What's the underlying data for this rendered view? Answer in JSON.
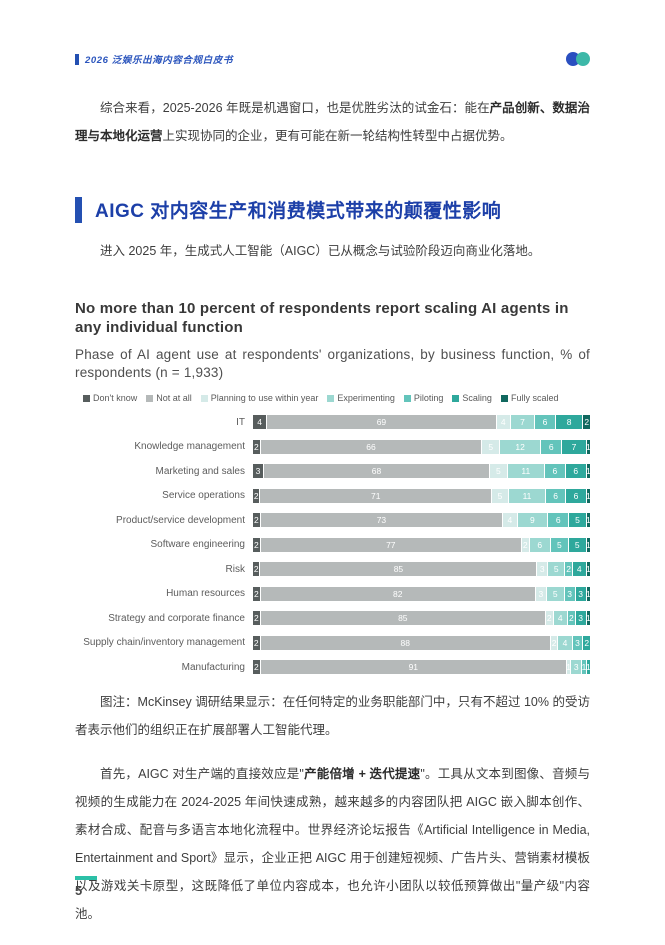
{
  "header": {
    "title": "2026 泛娱乐出海内容合规白皮书"
  },
  "intro_paragraph": {
    "pre": "综合来看，2025-2026 年既是机遇窗口，也是优胜劣汰的试金石：能在",
    "bold": "产品创新、数据治理与本地化运营",
    "post": "上实现协同的企业，更有可能在新一轮结构性转型中占据优势。"
  },
  "section": {
    "heading": "AIGC 对内容生产和消费模式带来的颠覆性影响",
    "lead": "进入 2025 年，生成式人工智能（AIGC）已从概念与试验阶段迈向商业化落地。"
  },
  "chart_data": {
    "type": "bar",
    "orientation": "horizontal-stacked",
    "title": "No more than 10 percent of respondents report scaling AI agents in any individual function",
    "subtitle": "Phase of AI agent use at respondents' organizations, by business function, % of respondents (n = 1,933)",
    "unit": "% of respondents",
    "legend_position": "top",
    "grid": false,
    "xlim": [
      0,
      100
    ],
    "series_names": [
      "Don't know",
      "Not at all",
      "Planning to use within year",
      "Experimenting",
      "Piloting",
      "Scaling",
      "Fully scaled"
    ],
    "series_colors": [
      "#575d5d",
      "#b5b9b9",
      "#d5eae8",
      "#9cd8d1",
      "#63c4bb",
      "#2ea89c",
      "#11685f"
    ],
    "categories": [
      "IT",
      "Knowledge management",
      "Marketing and sales",
      "Service operations",
      "Product/service development",
      "Software engineering",
      "Risk",
      "Human resources",
      "Strategy and corporate finance",
      "Supply chain/inventory management",
      "Manufacturing"
    ],
    "rows": [
      [
        4,
        69,
        4,
        7,
        6,
        8,
        2
      ],
      [
        2,
        66,
        5,
        12,
        6,
        7,
        1
      ],
      [
        3,
        68,
        5,
        11,
        6,
        6,
        1
      ],
      [
        2,
        71,
        5,
        11,
        6,
        6,
        1
      ],
      [
        2,
        73,
        4,
        9,
        6,
        5,
        1
      ],
      [
        2,
        77,
        2,
        6,
        5,
        5,
        1
      ],
      [
        2,
        85,
        3,
        5,
        2,
        4,
        1
      ],
      [
        2,
        82,
        3,
        5,
        3,
        3,
        1
      ],
      [
        2,
        85,
        2,
        4,
        2,
        3,
        1
      ],
      [
        2,
        88,
        2,
        4,
        3,
        2,
        0
      ],
      [
        2,
        91,
        1,
        3,
        1,
        1,
        0
      ]
    ]
  },
  "caption": "图注：McKinsey 调研结果显示：在任何特定的业务职能部门中，只有不超过 10% 的受访者表示他们的组织正在扩展部署人工智能代理。",
  "body_paragraph": {
    "pre": "首先，AIGC 对生产端的直接效应是\"",
    "bold": "产能倍增 + 迭代提速",
    "post": "\"。工具从文本到图像、音频与视频的生成能力在 2024-2025 年间快速成熟，越来越多的内容团队把 AIGC 嵌入脚本创作、素材合成、配音与多语言本地化流程中。世界经济论坛报告《Artificial Intelligence in Media, Entertainment and Sport》显示，企业正把 AIGC 用于创建短视频、广告片头、营销素材模板以及游戏关卡原型，这既降低了单位内容成本，也允许小团队以较低预算做出\"量产级\"内容池。"
  },
  "footer": {
    "page_number": "5"
  },
  "colors": {
    "accent_blue": "#2450b2",
    "heading_blue": "#1c3fa8",
    "footer_teal": "#2cc0a7",
    "logo_blue": "#2a4fc0",
    "logo_teal": "#3db8a8"
  }
}
